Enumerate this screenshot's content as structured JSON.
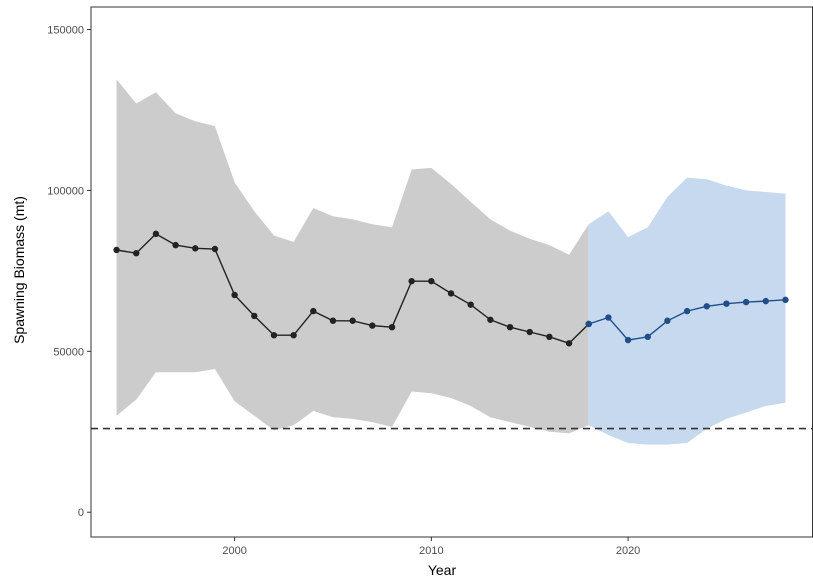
{
  "chart_data": {
    "type": "line",
    "title": "",
    "xlabel": "Year",
    "ylabel": "Spawning Biomass (mt)",
    "xlim": [
      1992.7,
      2029.4
    ],
    "ylim": [
      -7700,
      157000
    ],
    "grid": false,
    "legend": "none",
    "x_ticks": [
      2000,
      2010,
      2020
    ],
    "x_tick_labels": [
      "2000",
      "2010",
      "2020"
    ],
    "y_ticks": [
      0,
      50000,
      100000,
      150000
    ],
    "y_tick_labels": [
      "0",
      "50000",
      "100000",
      "150000"
    ],
    "reference_line": {
      "y": 26000,
      "style": "dashed"
    },
    "colors": {
      "historical_line": "#222222",
      "historical_band": "#cccccc",
      "projection_line": "#1f4e89",
      "projection_band": "#c6d9ef",
      "reference_line": "#333333",
      "axis": "#333333"
    },
    "series": [
      {
        "x": [
          1994,
          1995,
          1996,
          1997,
          1998,
          1999,
          2000,
          2001,
          2002,
          2003,
          2004,
          2005,
          2006,
          2007,
          2008,
          2009,
          2010,
          2011,
          2012,
          2013,
          2014,
          2015,
          2016,
          2017,
          2018
        ],
        "values": [
          81500,
          80500,
          86500,
          83000,
          82000,
          81800,
          67500,
          61000,
          55000,
          55000,
          62500,
          59500,
          59500,
          58000,
          57500,
          71800,
          71800,
          68000,
          64500,
          59800,
          57500,
          56000,
          54500,
          52500,
          58500
        ],
        "lower": [
          30000,
          35000,
          43500,
          43500,
          43500,
          44500,
          34500,
          30000,
          25500,
          27000,
          31500,
          29500,
          29000,
          28000,
          26500,
          37500,
          37000,
          35500,
          33000,
          29500,
          28000,
          26500,
          25000,
          24500,
          27000
        ],
        "upper": [
          134500,
          127000,
          130500,
          124000,
          121500,
          120000,
          102500,
          93500,
          86000,
          84000,
          94500,
          92000,
          91000,
          89500,
          88500,
          106500,
          107000,
          102000,
          96500,
          91000,
          87500,
          85000,
          83000,
          80000,
          89500
        ]
      },
      {
        "x": [
          2018,
          2019,
          2020,
          2021,
          2022,
          2023,
          2024,
          2025,
          2026,
          2027,
          2028
        ],
        "values": [
          58500,
          60500,
          53500,
          54500,
          59500,
          62500,
          64000,
          64800,
          65300,
          65600,
          66000
        ],
        "lower": [
          27000,
          24000,
          21500,
          21000,
          21000,
          21500,
          26000,
          29000,
          31000,
          33000,
          34000
        ],
        "upper": [
          89500,
          93500,
          85500,
          88500,
          98000,
          104000,
          103500,
          101500,
          100000,
          99500,
          99000
        ]
      }
    ]
  }
}
